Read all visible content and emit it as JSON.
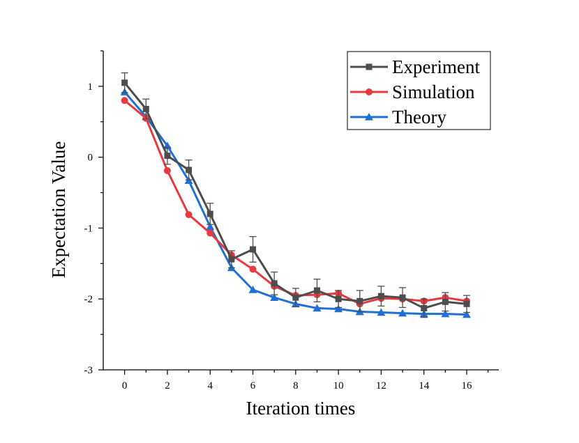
{
  "chart_data": {
    "type": "line",
    "title": "",
    "xlabel": "Iteration times",
    "ylabel": "Expectation Value",
    "xlim": [
      -1,
      17.5
    ],
    "ylim": [
      -3,
      1.5
    ],
    "x_ticks": [
      0,
      2,
      4,
      6,
      8,
      10,
      12,
      14,
      16
    ],
    "y_ticks": [
      -3,
      -2,
      -1,
      0,
      1
    ],
    "y_tick_labels": [
      "-3",
      "-2",
      "-1",
      "0",
      "1"
    ],
    "grid": false,
    "legend_position": "top-right",
    "x": [
      0,
      1,
      2,
      3,
      4,
      5,
      6,
      7,
      8,
      9,
      10,
      11,
      12,
      13,
      14,
      15,
      16
    ],
    "series": [
      {
        "name": "Experiment",
        "color": "#4d4d4d",
        "marker": "square",
        "values": [
          1.05,
          0.68,
          0.02,
          -0.18,
          -0.8,
          -1.44,
          -1.3,
          -1.78,
          -1.98,
          -1.88,
          -2.0,
          -2.03,
          -1.96,
          -1.98,
          -2.13,
          -2.04,
          -2.07
        ],
        "error": [
          0.14,
          0.14,
          0.12,
          0.14,
          0.15,
          0.12,
          0.18,
          0.16,
          0.13,
          0.16,
          0.12,
          0.15,
          0.14,
          0.14,
          0.13,
          0.13,
          0.12
        ]
      },
      {
        "name": "Simulation",
        "color": "#e8393d",
        "marker": "circle",
        "values": [
          0.8,
          0.55,
          -0.19,
          -0.81,
          -1.07,
          -1.38,
          -1.58,
          -1.82,
          -1.95,
          -1.94,
          -1.92,
          -2.07,
          -1.99,
          -2.0,
          -2.03,
          -1.98,
          -2.03
        ]
      },
      {
        "name": "Theory",
        "color": "#1f6fd6",
        "marker": "triangle",
        "values": [
          0.92,
          0.57,
          0.16,
          -0.33,
          -0.98,
          -1.56,
          -1.87,
          -1.98,
          -2.07,
          -2.13,
          -2.14,
          -2.18,
          -2.19,
          -2.2,
          -2.21,
          -2.21,
          -2.22
        ]
      }
    ]
  }
}
